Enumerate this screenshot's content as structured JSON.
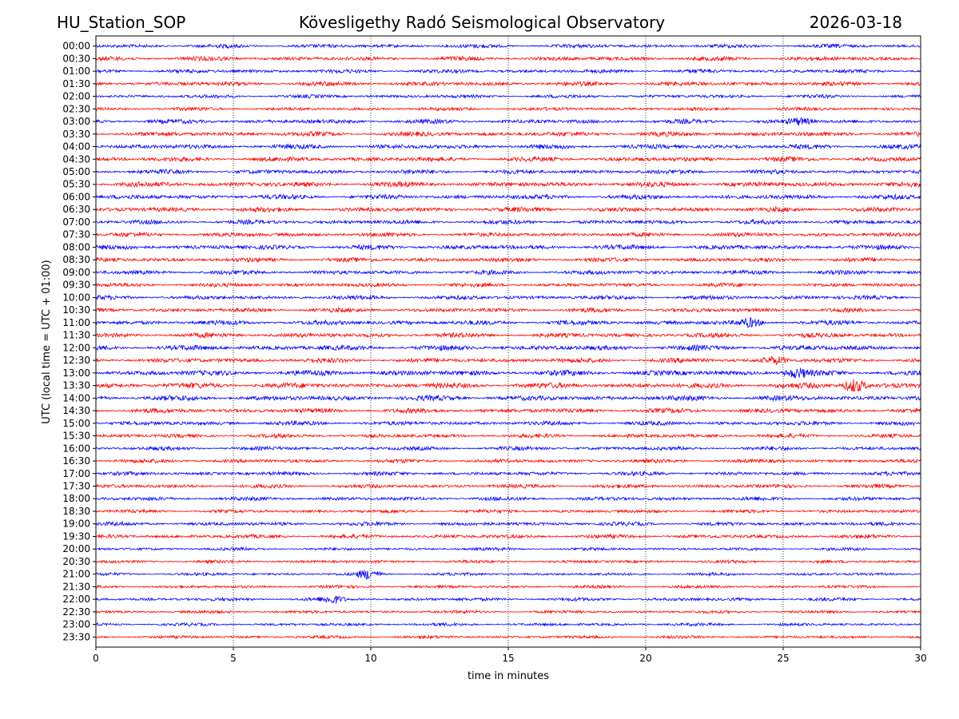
{
  "header": {
    "station": "HU_Station_SOP",
    "observatory": "Kövesligethy Radó Seismological Observatory",
    "date": "2026-03-18"
  },
  "chart_data": {
    "type": "line",
    "title": "Kövesligethy Radó Seismological Observatory",
    "xlabel": "time in minutes",
    "ylabel": "UTC (local time = UTC + 01:00)",
    "xlim": [
      0,
      30
    ],
    "xticks": [
      "0",
      "5",
      "10",
      "15",
      "20",
      "25",
      "30"
    ],
    "xtick_values": [
      0,
      5,
      10,
      15,
      20,
      25,
      30
    ],
    "grid_x": true,
    "series_colors": [
      "#0000ff",
      "#ff0000"
    ],
    "rows": [
      "00:00",
      "00:30",
      "01:00",
      "01:30",
      "02:00",
      "02:30",
      "03:00",
      "03:30",
      "04:00",
      "04:30",
      "05:00",
      "05:30",
      "06:00",
      "06:30",
      "07:00",
      "07:30",
      "08:00",
      "08:30",
      "09:00",
      "09:30",
      "10:00",
      "10:30",
      "11:00",
      "11:30",
      "12:00",
      "12:30",
      "13:00",
      "13:30",
      "14:00",
      "14:30",
      "15:00",
      "15:30",
      "16:00",
      "16:30",
      "17:00",
      "17:30",
      "18:00",
      "18:30",
      "19:00",
      "19:30",
      "20:00",
      "20:30",
      "21:00",
      "21:30",
      "22:00",
      "22:30",
      "23:00",
      "23:30"
    ],
    "row_amplitude": [
      0.45,
      0.5,
      0.45,
      0.5,
      0.4,
      0.4,
      0.5,
      0.55,
      0.55,
      0.55,
      0.5,
      0.6,
      0.55,
      0.55,
      0.5,
      0.5,
      0.55,
      0.5,
      0.5,
      0.45,
      0.5,
      0.5,
      0.55,
      0.55,
      0.6,
      0.55,
      0.65,
      0.65,
      0.6,
      0.55,
      0.5,
      0.45,
      0.45,
      0.45,
      0.45,
      0.45,
      0.45,
      0.4,
      0.45,
      0.45,
      0.35,
      0.35,
      0.35,
      0.35,
      0.4,
      0.35,
      0.35,
      0.35
    ],
    "events": [
      {
        "row": "11:00",
        "minute": 23.8,
        "amp": 1.4
      },
      {
        "row": "13:30",
        "minute": 27.6,
        "amp": 2.2
      },
      {
        "row": "13:00",
        "minute": 25.5,
        "amp": 1.3
      },
      {
        "row": "21:00",
        "minute": 9.9,
        "amp": 2.6
      },
      {
        "row": "22:00",
        "minute": 8.6,
        "amp": 1.8
      },
      {
        "row": "03:00",
        "minute": 25.6,
        "amp": 1.3
      },
      {
        "row": "12:30",
        "minute": 24.7,
        "amp": 1.3
      }
    ]
  }
}
